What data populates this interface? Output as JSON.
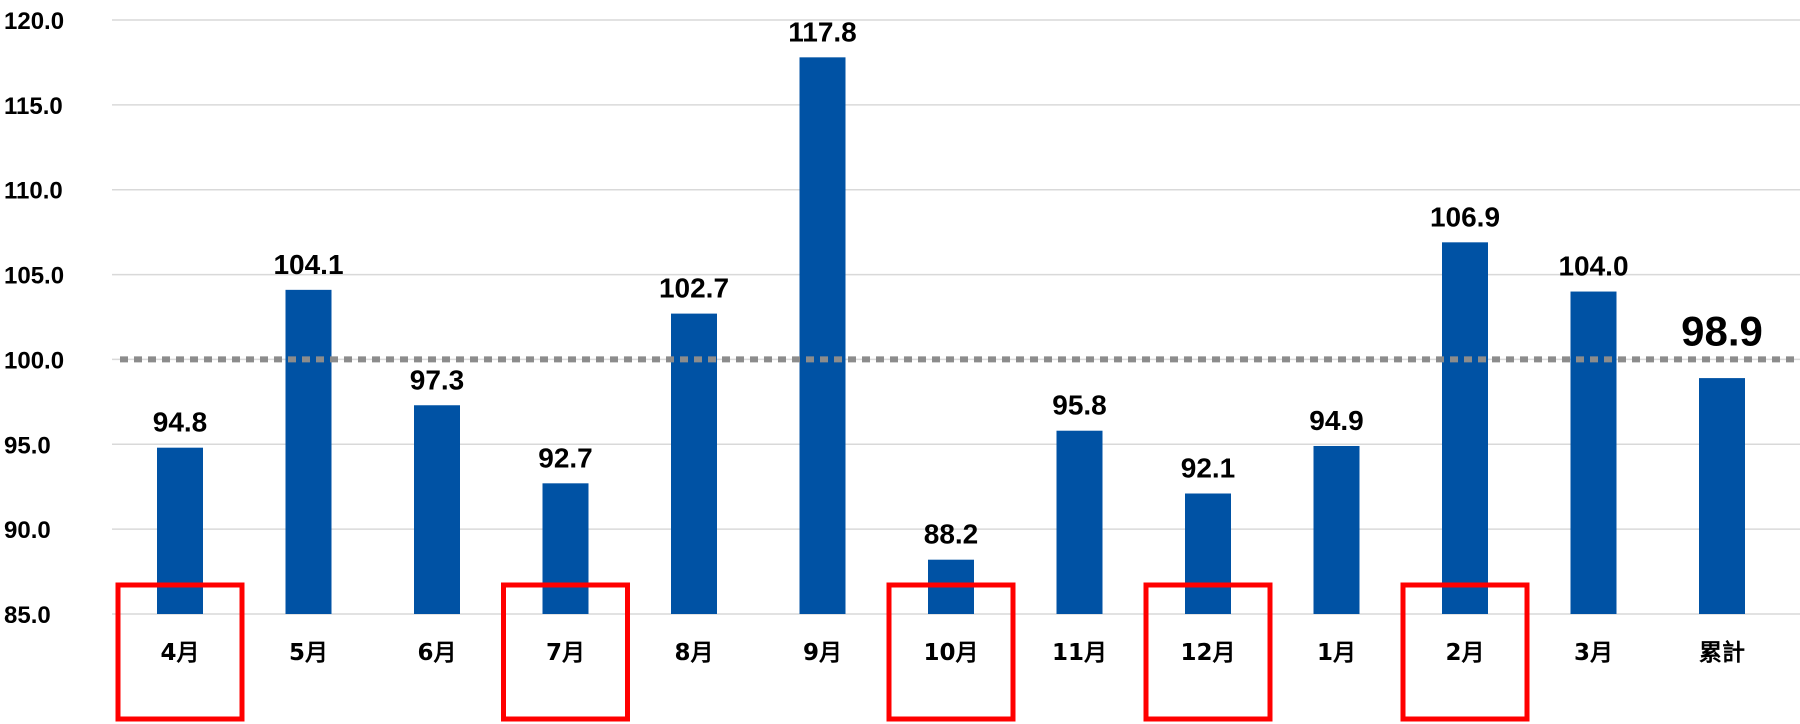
{
  "chart_data": {
    "type": "bar",
    "categories": [
      "4月",
      "5月",
      "6月",
      "7月",
      "8月",
      "9月",
      "10月",
      "11月",
      "12月",
      "1月",
      "2月",
      "3月",
      "累計"
    ],
    "values": [
      94.8,
      104.1,
      97.3,
      92.7,
      102.7,
      117.8,
      88.2,
      95.8,
      92.1,
      94.9,
      106.9,
      104.0,
      98.9
    ],
    "data_labels": [
      "94.8",
      "104.1",
      "97.3",
      "92.7",
      "102.7",
      "117.8",
      "88.2",
      "95.8",
      "92.1",
      "94.9",
      "106.9",
      "104.0",
      "98.9"
    ],
    "y_ticks": [
      "85.0",
      "90.0",
      "95.0",
      "100.0",
      "105.0",
      "110.0",
      "115.0",
      "120.0"
    ],
    "ylim": [
      85,
      120
    ],
    "reference_line": 100,
    "highlighted_categories": [
      "4月",
      "7月",
      "10月",
      "12月",
      "2月"
    ],
    "grid": true,
    "colors": {
      "bar": "#0052A4",
      "gridline": "#d9d9d9",
      "reference_line": "#8c8c8c",
      "highlight": "#ff0000"
    },
    "title": "",
    "xlabel": "",
    "ylabel": ""
  }
}
